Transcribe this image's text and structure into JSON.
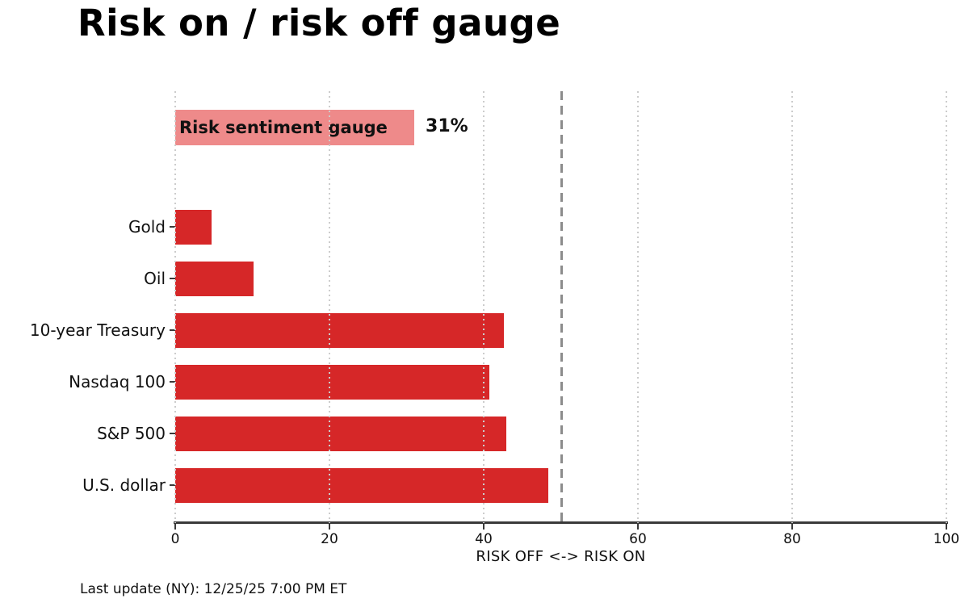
{
  "title": "Risk on / risk off gauge",
  "footer": "Last update (NY): 12/25/25 7:00 PM ET",
  "colors": {
    "bar_red": "#d62728",
    "gauge_pink": "#ee8a8a",
    "reference_line_gray": "#8c8c8c",
    "grid_gray": "#cccccc",
    "axis_dark": "#3a3a3a"
  },
  "chart_data": {
    "type": "bar",
    "orientation": "horizontal",
    "title": "Risk on / risk off gauge",
    "xlabel": "RISK OFF <-> RISK ON",
    "xlim": [
      0,
      100
    ],
    "xticks": [
      0,
      20,
      40,
      60,
      80,
      100
    ],
    "grid": "vertical dotted gridlines at each x tick, drawn over bars",
    "legend": "none",
    "reference_line": {
      "x": 50,
      "style": "dashed",
      "color": "#8c8c8c"
    },
    "gauge": {
      "label": "Risk sentiment gauge",
      "value": 31,
      "display_value": "31%",
      "color": "#ee8a8a"
    },
    "categories": [
      "Gold",
      "Oil",
      "10-year Treasury",
      "Nasdaq 100",
      "S&P 500",
      "U.S. dollar"
    ],
    "values": [
      4.7,
      10.2,
      42.6,
      40.7,
      42.9,
      48.4
    ],
    "bar_color": "#d62728"
  }
}
